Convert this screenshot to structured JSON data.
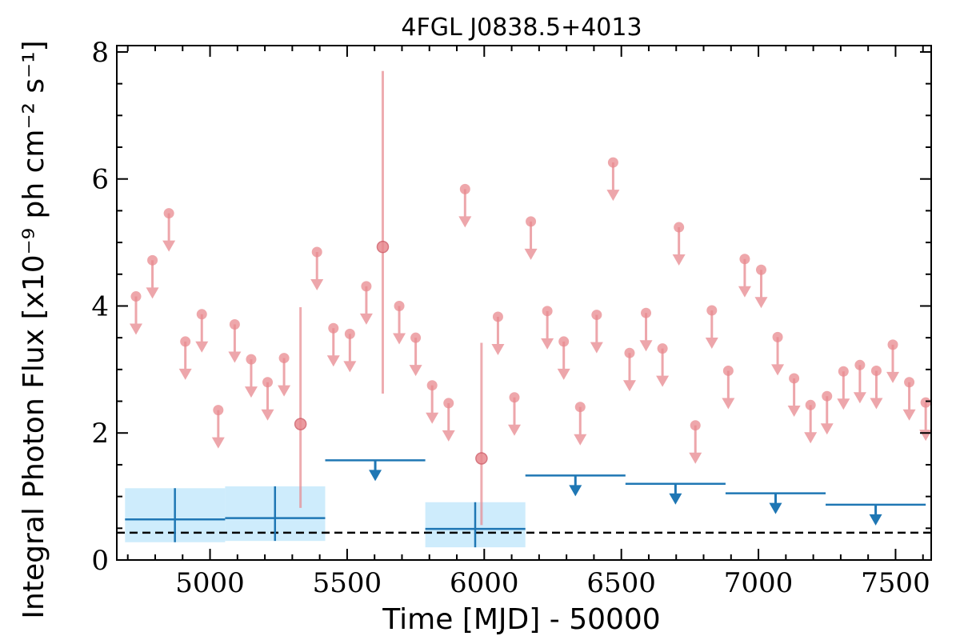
{
  "chart_data": {
    "type": "scatter",
    "title": "4FGL J0838.5+4013",
    "xlabel": "Time [MJD] - 50000",
    "ylabel": "Integral Photon Flux [x10⁻⁹ ph cm⁻² s⁻¹]",
    "xlim": [
      4660,
      7630
    ],
    "ylim": [
      0,
      8.1
    ],
    "x_ticks": [
      5000,
      5500,
      6000,
      6500,
      7000,
      7500
    ],
    "y_ticks": [
      0,
      2,
      4,
      6,
      8
    ],
    "grid": false,
    "mean_flux_line": 0.43,
    "colors": {
      "short_bin": "#e8898f",
      "long_bin": "#1f77b4",
      "long_bin_band": "#c6e9fb",
      "mean_line": "#000000"
    },
    "short_bins_upper_limits": {
      "x": [
        4730,
        4790,
        4850,
        4910,
        4970,
        5030,
        5090,
        5150,
        5210,
        5270,
        5390,
        5450,
        5510,
        5570,
        5690,
        5750,
        5810,
        5870,
        5930,
        6050,
        6110,
        6170,
        6230,
        6290,
        6350,
        6410,
        6470,
        6530,
        6590,
        6650,
        6710,
        6770,
        6830,
        6890,
        6950,
        7010,
        7070,
        7130,
        7190,
        7250,
        7310,
        7370,
        7430,
        7490,
        7550,
        7610
      ],
      "y": [
        4.15,
        4.72,
        5.46,
        3.44,
        3.87,
        2.36,
        3.71,
        3.16,
        2.8,
        3.18,
        4.85,
        3.65,
        3.56,
        4.31,
        4.0,
        3.5,
        2.75,
        2.47,
        5.84,
        3.83,
        2.56,
        5.33,
        3.92,
        3.44,
        2.41,
        3.86,
        6.26,
        3.26,
        3.89,
        3.33,
        5.24,
        2.12,
        3.93,
        2.98,
        4.74,
        4.57,
        3.51,
        2.86,
        2.44,
        2.58,
        2.97,
        3.07,
        2.98,
        3.39,
        2.8,
        2.48
      ]
    },
    "short_bins_detections": [
      {
        "x": 5330,
        "y": 2.14,
        "y_low": 0.82,
        "y_high": 3.98
      },
      {
        "x": 5630,
        "y": 4.93,
        "y_low": 2.62,
        "y_high": 7.7
      },
      {
        "x": 5990,
        "y": 1.6,
        "y_low": 0.55,
        "y_high": 3.42
      }
    ],
    "long_bins_detections": [
      {
        "x_start": 4690,
        "x_end": 5055,
        "x": 4872,
        "y": 0.64,
        "y_low": 0.28,
        "y_high": 1.13
      },
      {
        "x_start": 5055,
        "x_end": 5420,
        "x": 5237,
        "y": 0.66,
        "y_low": 0.3,
        "y_high": 1.16
      },
      {
        "x_start": 5785,
        "x_end": 6150,
        "x": 5967,
        "y": 0.49,
        "y_low": 0.2,
        "y_high": 0.91
      }
    ],
    "long_bins_upper_limits": [
      {
        "x_start": 5420,
        "x_end": 5785,
        "y": 1.57
      },
      {
        "x_start": 6150,
        "x_end": 6515,
        "y": 1.33
      },
      {
        "x_start": 6515,
        "x_end": 6880,
        "y": 1.2
      },
      {
        "x_start": 6880,
        "x_end": 7245,
        "y": 1.05
      },
      {
        "x_start": 7245,
        "x_end": 7610,
        "y": 0.87
      }
    ]
  }
}
